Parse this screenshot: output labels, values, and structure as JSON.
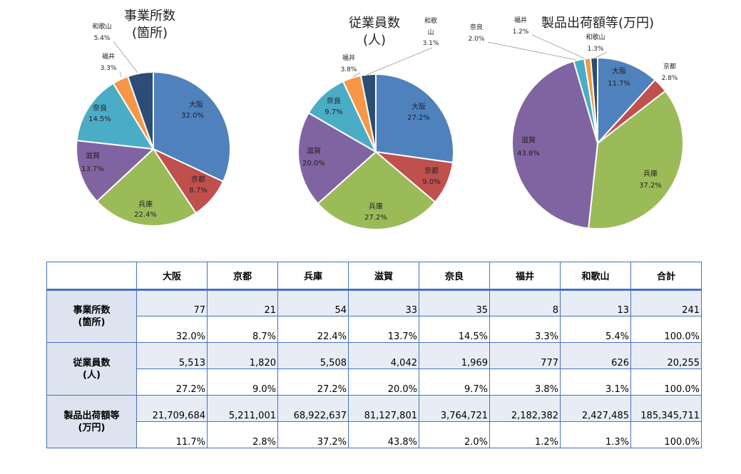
{
  "chart_data": [
    {
      "type": "pie",
      "title": [
        "事業所数",
        "(箇所)"
      ],
      "categories": [
        "大阪",
        "京都",
        "兵庫",
        "滋賀",
        "奈良",
        "福井",
        "和歌山"
      ],
      "values": [
        77,
        21,
        54,
        33,
        35,
        8,
        13
      ],
      "percent_labels": [
        "32.0%",
        "8.7%",
        "22.4%",
        "13.7%",
        "14.5%",
        "3.3%",
        "5.4%"
      ]
    },
    {
      "type": "pie",
      "title": [
        "従業員数",
        "(人)"
      ],
      "categories": [
        "大阪",
        "京都",
        "兵庫",
        "滋賀",
        "奈良",
        "福井",
        "和歌山"
      ],
      "values": [
        5513,
        1820,
        5508,
        4042,
        1969,
        777,
        626
      ],
      "percent_labels": [
        "27.2%",
        "9.0%",
        "27.2%",
        "20.0%",
        "9.7%",
        "3.8%",
        "3.1%"
      ]
    },
    {
      "type": "pie",
      "title": [
        "製品出荷額等(万円)"
      ],
      "categories": [
        "大阪",
        "京都",
        "兵庫",
        "滋賀",
        "奈良",
        "福井",
        "和歌山"
      ],
      "values": [
        21709684,
        5211001,
        68922637,
        81127801,
        3764721,
        2182382,
        2427485
      ],
      "percent_labels": [
        "11.7%",
        "2.8%",
        "37.2%",
        "43.8%",
        "2.0%",
        "1.2%",
        "1.3%"
      ]
    }
  ],
  "colors": {
    "大阪": "#4f81bd",
    "京都": "#c0504d",
    "兵庫": "#9bbb59",
    "滋賀": "#8064a2",
    "奈良": "#4bacc6",
    "福井": "#f79646",
    "和歌山": "#2c4d75"
  },
  "table": {
    "columns": [
      "大阪",
      "京都",
      "兵庫",
      "滋賀",
      "奈良",
      "福井",
      "和歌山",
      "合計"
    ],
    "rows": [
      {
        "label": [
          "事業所数",
          "(箇所)"
        ],
        "values": [
          "77",
          "21",
          "54",
          "33",
          "35",
          "8",
          "13",
          "241"
        ],
        "percents": [
          "32.0%",
          "8.7%",
          "22.4%",
          "13.7%",
          "14.5%",
          "3.3%",
          "5.4%",
          "100.0%"
        ]
      },
      {
        "label": [
          "従業員数",
          "(人)"
        ],
        "values": [
          "5,513",
          "1,820",
          "5,508",
          "4,042",
          "1,969",
          "777",
          "626",
          "20,255"
        ],
        "percents": [
          "27.2%",
          "9.0%",
          "27.2%",
          "20.0%",
          "9.7%",
          "3.8%",
          "3.1%",
          "100.0%"
        ]
      },
      {
        "label": [
          "製品出荷額等",
          "(万円)"
        ],
        "values": [
          "21,709,684",
          "5,211,001",
          "68,922,637",
          "81,127,801",
          "3,764,721",
          "2,182,382",
          "2,427,485",
          "185,345,711"
        ],
        "percents": [
          "11.7%",
          "2.8%",
          "37.2%",
          "43.8%",
          "2.0%",
          "1.2%",
          "1.3%",
          "100.0%"
        ]
      }
    ]
  }
}
